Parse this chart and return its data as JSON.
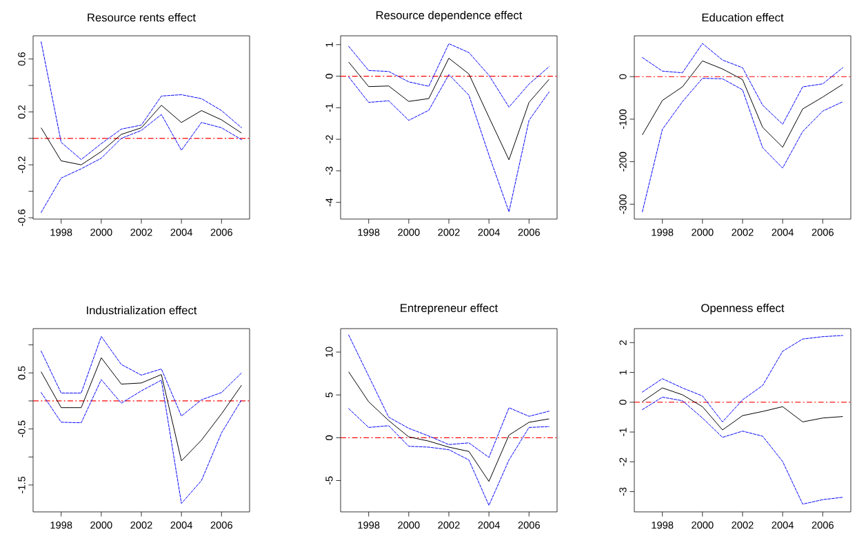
{
  "chart_data": [
    {
      "type": "line",
      "title": "Resource rents effect",
      "x": [
        1997,
        1998,
        1999,
        2000,
        2001,
        2002,
        2003,
        2004,
        2005,
        2006,
        2007
      ],
      "xlim": [
        1996.6,
        2007.4
      ],
      "xticks": [
        1998,
        2000,
        2002,
        2004,
        2006
      ],
      "ylim": [
        -0.61,
        0.775
      ],
      "yticks": [
        -0.6,
        {
          "value": -0.4,
          "label": null
        },
        -0.2,
        {
          "value": 0,
          "label": null
        },
        0.2,
        {
          "value": 0.4,
          "label": null
        },
        0.6
      ],
      "marker": "none",
      "series": [
        {
          "color": "#000000",
          "line_style": "solid",
          "values": [
            0.08,
            -0.17,
            -0.2,
            -0.1,
            0.03,
            0.08,
            0.25,
            0.12,
            0.21,
            0.14,
            0.04
          ]
        },
        {
          "color": "#0000ff",
          "line_style": "dashed",
          "values": [
            0.73,
            -0.03,
            -0.16,
            -0.04,
            0.07,
            0.1,
            0.32,
            0.33,
            0.3,
            0.21,
            0.08
          ]
        },
        {
          "color": "#0000ff",
          "line_style": "dashed",
          "values": [
            -0.56,
            -0.3,
            -0.23,
            -0.15,
            0.0,
            0.06,
            0.18,
            -0.09,
            0.12,
            0.08,
            -0.01
          ]
        }
      ],
      "ref_lines": [
        {
          "axis": "y",
          "value": 0,
          "color": "#ff0000",
          "line_style": "dashdot"
        }
      ]
    },
    {
      "type": "line",
      "title": "Resource dependence effect",
      "x": [
        1997,
        1998,
        1999,
        2000,
        2001,
        2002,
        2003,
        2004,
        2005,
        2006,
        2007
      ],
      "xlim": [
        1996.6,
        2007.4
      ],
      "xticks": [
        1998,
        2000,
        2002,
        2004,
        2006
      ],
      "ylim": [
        -4.53,
        1.28
      ],
      "yticks": [
        -4,
        -3,
        -2,
        -1,
        0,
        1
      ],
      "marker": "none",
      "series": [
        {
          "color": "#000000",
          "line_style": "solid",
          "values": [
            0.45,
            -0.33,
            -0.31,
            -0.8,
            -0.71,
            0.57,
            0.07,
            -1.3,
            -2.65,
            -0.83,
            -0.1
          ]
        },
        {
          "color": "#0000ff",
          "line_style": "dashed",
          "values": [
            0.95,
            0.18,
            0.15,
            -0.18,
            -0.32,
            1.03,
            0.75,
            0.03,
            -0.98,
            -0.25,
            0.3
          ]
        },
        {
          "color": "#0000ff",
          "line_style": "dashed",
          "values": [
            -0.02,
            -0.83,
            -0.78,
            -1.4,
            -1.08,
            0.05,
            -0.6,
            -2.5,
            -4.3,
            -1.4,
            -0.5
          ]
        }
      ],
      "ref_lines": [
        {
          "axis": "y",
          "value": 0,
          "color": "#ff0000",
          "line_style": "dashdot"
        }
      ]
    },
    {
      "type": "line",
      "title": "Education effect",
      "x": [
        1997,
        1998,
        1999,
        2000,
        2001,
        2002,
        2003,
        2004,
        2005,
        2006,
        2007
      ],
      "xlim": [
        1996.6,
        2007.4
      ],
      "xticks": [
        1998,
        2000,
        2002,
        2004,
        2006
      ],
      "ylim": [
        -335,
        96
      ],
      "yticks": [
        -300,
        -200,
        -100,
        0
      ],
      "marker": "none",
      "series": [
        {
          "color": "#000000",
          "line_style": "solid",
          "values": [
            -137,
            -56,
            -24,
            37,
            18,
            -7,
            -119,
            -166,
            -76,
            -48,
            -18
          ]
        },
        {
          "color": "#0000ff",
          "line_style": "dashed",
          "values": [
            45,
            13,
            9,
            78,
            39,
            21,
            -67,
            -112,
            -24,
            -17,
            21
          ]
        },
        {
          "color": "#0000ff",
          "line_style": "dashed",
          "values": [
            -318,
            -124,
            -59,
            -4,
            -5,
            -31,
            -167,
            -215,
            -129,
            -81,
            -59
          ]
        }
      ],
      "ref_lines": [
        {
          "axis": "y",
          "value": 0,
          "color": "#ff0000",
          "line_style": "dashdot"
        }
      ]
    },
    {
      "type": "line",
      "title": "Industrialization effect",
      "x": [
        1997,
        1998,
        1999,
        2000,
        2001,
        2002,
        2003,
        2004,
        2005,
        2006,
        2007
      ],
      "xlim": [
        1996.6,
        2007.4
      ],
      "xticks": [
        1998,
        2000,
        2002,
        2004,
        2006
      ],
      "ylim": [
        -1.98,
        1.29
      ],
      "yticks": [
        -1.5,
        {
          "value": -1,
          "label": null
        },
        -0.5,
        {
          "value": 0,
          "label": null
        },
        0.5,
        {
          "value": 1,
          "label": null
        }
      ],
      "marker": "none",
      "series": [
        {
          "color": "#000000",
          "line_style": "solid",
          "values": [
            0.52,
            -0.12,
            -0.12,
            0.77,
            0.3,
            0.32,
            0.47,
            -1.07,
            -0.7,
            -0.23,
            0.28
          ]
        },
        {
          "color": "#0000ff",
          "line_style": "dashed",
          "values": [
            0.89,
            0.14,
            0.14,
            1.15,
            0.65,
            0.46,
            0.57,
            -0.27,
            0.02,
            0.15,
            0.5
          ]
        },
        {
          "color": "#0000ff",
          "line_style": "dashed",
          "values": [
            0.15,
            -0.38,
            -0.39,
            0.38,
            -0.04,
            0.18,
            0.37,
            -1.83,
            -1.42,
            -0.57,
            0.02
          ]
        }
      ],
      "ref_lines": [
        {
          "axis": "y",
          "value": 0,
          "color": "#ff0000",
          "line_style": "dashdot"
        }
      ]
    },
    {
      "type": "line",
      "title": "Entrepreneur effect",
      "x": [
        1997,
        1998,
        1999,
        2000,
        2001,
        2002,
        2003,
        2004,
        2005,
        2006,
        2007
      ],
      "xlim": [
        1996.6,
        2007.4
      ],
      "xticks": [
        1998,
        2000,
        2002,
        2004,
        2006
      ],
      "ylim": [
        -8.66,
        12.74
      ],
      "yticks": [
        -5,
        0,
        5,
        10
      ],
      "marker": "none",
      "series": [
        {
          "color": "#000000",
          "line_style": "solid",
          "values": [
            7.7,
            4.2,
            2.0,
            0.1,
            -0.4,
            -1.1,
            -1.6,
            -5.1,
            0.3,
            1.8,
            2.2
          ]
        },
        {
          "color": "#0000ff",
          "line_style": "dashed",
          "values": [
            12.0,
            7.2,
            2.4,
            1.1,
            0.2,
            -0.8,
            -0.6,
            -2.3,
            3.5,
            2.5,
            3.1
          ]
        },
        {
          "color": "#0000ff",
          "line_style": "dashed",
          "values": [
            3.4,
            1.2,
            1.4,
            -1.0,
            -1.1,
            -1.4,
            -2.6,
            -7.9,
            -2.6,
            1.2,
            1.3
          ]
        }
      ],
      "ref_lines": [
        {
          "axis": "y",
          "value": 0,
          "color": "#ff0000",
          "line_style": "dashdot"
        }
      ]
    },
    {
      "type": "line",
      "title": "Openness effect",
      "x": [
        1997,
        1998,
        1999,
        2000,
        2001,
        2002,
        2003,
        2004,
        2005,
        2006,
        2007
      ],
      "xlim": [
        1996.6,
        2007.4
      ],
      "xticks": [
        1998,
        2000,
        2002,
        2004,
        2006
      ],
      "ylim": [
        -3.68,
        2.47
      ],
      "yticks": [
        -3,
        -2,
        -1,
        0,
        1,
        2
      ],
      "marker": "none",
      "series": [
        {
          "color": "#000000",
          "line_style": "solid",
          "values": [
            0.02,
            0.48,
            0.25,
            -0.15,
            -0.93,
            -0.45,
            -0.31,
            -0.15,
            -0.66,
            -0.53,
            -0.48
          ]
        },
        {
          "color": "#0000ff",
          "line_style": "dashed",
          "values": [
            0.34,
            0.79,
            0.48,
            0.21,
            -0.66,
            0.08,
            0.56,
            1.71,
            2.12,
            2.2,
            2.24
          ]
        },
        {
          "color": "#0000ff",
          "line_style": "dashed",
          "values": [
            -0.25,
            0.17,
            0.05,
            -0.53,
            -1.18,
            -0.97,
            -1.14,
            -1.99,
            -3.42,
            -3.27,
            -3.19
          ]
        }
      ],
      "ref_lines": [
        {
          "axis": "y",
          "value": 0,
          "color": "#ff0000",
          "line_style": "dashdot"
        }
      ]
    }
  ]
}
